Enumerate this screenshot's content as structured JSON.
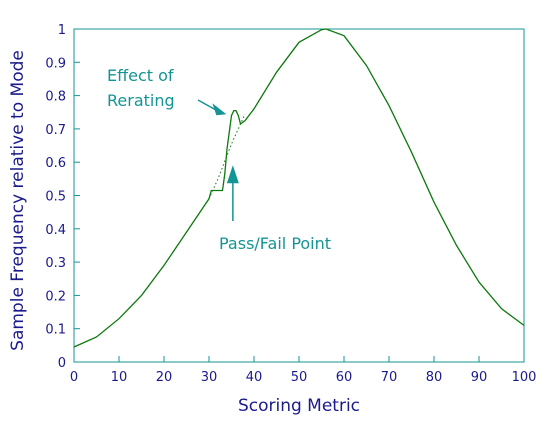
{
  "chart_data": {
    "type": "line",
    "title": "",
    "xlabel": "Scoring Metric",
    "ylabel": "Sample Frequency relative to Mode",
    "xlim": [
      0,
      100
    ],
    "ylim": [
      0,
      1
    ],
    "x_ticks": [
      "0",
      "10",
      "20",
      "30",
      "40",
      "50",
      "60",
      "70",
      "80",
      "90",
      "100"
    ],
    "y_ticks": [
      "0",
      "0.1",
      "0.2",
      "0.3",
      "0.4",
      "0.5",
      "0.6",
      "0.7",
      "0.8",
      "0.9",
      "1"
    ],
    "grid": false,
    "legend": "none",
    "series": [
      {
        "x": [
          0,
          5,
          10,
          15,
          20,
          25,
          30,
          30.5,
          32,
          33,
          33.5,
          34,
          35,
          35.5,
          36,
          36.5,
          37,
          38,
          40,
          45,
          50,
          55,
          56,
          60,
          65,
          70,
          75,
          80,
          85,
          90,
          95,
          100
        ],
        "y": [
          0.045,
          0.075,
          0.13,
          0.2,
          0.29,
          0.39,
          0.49,
          0.515,
          0.515,
          0.515,
          0.565,
          0.64,
          0.74,
          0.755,
          0.755,
          0.74,
          0.715,
          0.725,
          0.76,
          0.87,
          0.96,
          0.998,
          1.0,
          0.98,
          0.89,
          0.77,
          0.63,
          0.48,
          0.35,
          0.24,
          0.16,
          0.11
        ]
      },
      {
        "x": [
          30,
          31,
          32,
          33,
          34,
          35,
          36,
          37,
          38
        ],
        "y": [
          0.49,
          0.52,
          0.55,
          0.585,
          0.62,
          0.655,
          0.685,
          0.715,
          0.745
        ],
        "style": "dotted"
      }
    ],
    "annotations": [
      {
        "lines": [
          "Effect of",
          "Rerating"
        ],
        "arrow_to": [
          34.3,
          0.75
        ]
      },
      {
        "lines": [
          "Pass/Fail Point"
        ],
        "arrow_to": [
          35.3,
          0.6
        ]
      }
    ],
    "colors": {
      "frame": "#149494",
      "curve": "#0c7a0c",
      "text": "#1a1a8c",
      "annotation": "#149494"
    }
  }
}
